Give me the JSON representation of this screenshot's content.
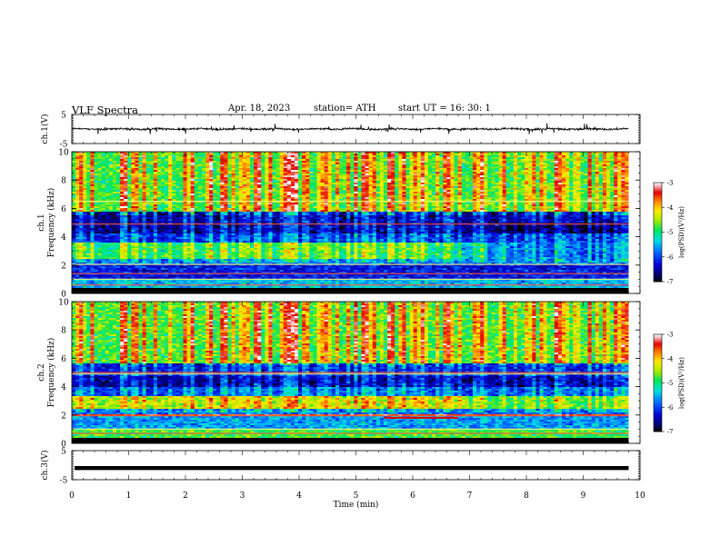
{
  "header": {
    "title": "VLF  Spectra",
    "date": "Apr. 18, 2023",
    "station": "station= ATH",
    "start": "start  UT  =    16: 30: 1"
  },
  "chart_data": [
    {
      "type": "line",
      "panel": "ch1-waveform",
      "ylabel": "ch.1(V)",
      "ylim": [
        -5,
        5
      ],
      "yticks": [
        5,
        -5
      ],
      "xlim": [
        0,
        10
      ],
      "signal": "dense broadband noise centred near 0 V, amplitude about ±1 V with spikes to about ±2 V",
      "x_end_min": 9.8
    },
    {
      "type": "heatmap",
      "panel": "ch1-spectrogram",
      "ylabel": "ch.1\nFrequency  (kHz)",
      "ylim": [
        0,
        10
      ],
      "yticks": [
        0,
        2,
        4,
        6,
        8,
        10
      ],
      "xlim": [
        0,
        10
      ],
      "x_end_min": 9.8,
      "colorbar": {
        "label": "log(PSD)(V²/Hz)",
        "range": [
          -7,
          -3
        ],
        "ticks": [
          "-3",
          "-4",
          "-5",
          "-6",
          "-7"
        ]
      },
      "bands_khz": [
        {
          "from": 0.0,
          "to": 0.35,
          "log_psd": -7.0,
          "note": "black lowest band"
        },
        {
          "from": 0.35,
          "to": 1.0,
          "log_psd": -5.5
        },
        {
          "from": 1.0,
          "to": 2.0,
          "log_psd": -6.2
        },
        {
          "from": 2.0,
          "to": 2.4,
          "log_psd": -5.8
        },
        {
          "from": 2.4,
          "to": 3.6,
          "log_psd": -5.0,
          "note": "weakens after about 6 min"
        },
        {
          "from": 3.6,
          "to": 4.2,
          "log_psd": -6.2
        },
        {
          "from": 4.2,
          "to": 5.8,
          "log_psd": -6.6,
          "note": "dark band, darkest near 4.5 kHz"
        },
        {
          "from": 5.8,
          "to": 10.0,
          "log_psd": -4.8,
          "note": "broadband with vertical sferic streaks"
        }
      ]
    },
    {
      "type": "heatmap",
      "panel": "ch2-spectrogram",
      "ylabel": "ch.2\nFrequency  (kHz)",
      "ylim": [
        0,
        10
      ],
      "yticks": [
        0,
        2,
        4,
        6,
        8,
        10
      ],
      "xlim": [
        0,
        10
      ],
      "x_end_min": 9.8,
      "colorbar": {
        "label": "log(PSD)(V²/Hz)",
        "range": [
          -7,
          -3
        ],
        "ticks": [
          "-3",
          "-4",
          "-5",
          "-6",
          "-7"
        ]
      },
      "bands_khz": [
        {
          "from": 0.0,
          "to": 0.35,
          "log_psd": -7.0,
          "note": "black lowest band"
        },
        {
          "from": 0.35,
          "to": 1.0,
          "log_psd": -4.8
        },
        {
          "from": 1.0,
          "to": 1.9,
          "log_psd": -5.6
        },
        {
          "from": 1.9,
          "to": 2.1,
          "log_psd": -3.5,
          "note": "red line, shifts down between 5.5 and 6.8 min"
        },
        {
          "from": 2.1,
          "to": 2.5,
          "log_psd": -5.8
        },
        {
          "from": 2.5,
          "to": 3.3,
          "log_psd": -4.5,
          "note": "yellow-green band"
        },
        {
          "from": 3.3,
          "to": 4.0,
          "log_psd": -6.0
        },
        {
          "from": 4.0,
          "to": 4.8,
          "log_psd": -6.6,
          "note": "dark band"
        },
        {
          "from": 4.8,
          "to": 5.6,
          "log_psd": -6.3
        },
        {
          "from": 5.6,
          "to": 10.0,
          "log_psd": -4.8,
          "note": "broadband with vertical sferic streaks"
        }
      ]
    },
    {
      "type": "line",
      "panel": "ch3-waveform",
      "ylabel": "ch.3(V)",
      "ylim": [
        -5,
        5
      ],
      "yticks": [
        5,
        -5
      ],
      "xlim": [
        0,
        10
      ],
      "signal": "flat trace near -1 V",
      "level": -1,
      "x_end_min": 9.8,
      "xlabel": "Time  (min)",
      "xticks": [
        0,
        1,
        2,
        3,
        4,
        5,
        6,
        7,
        8,
        9,
        10
      ]
    }
  ]
}
